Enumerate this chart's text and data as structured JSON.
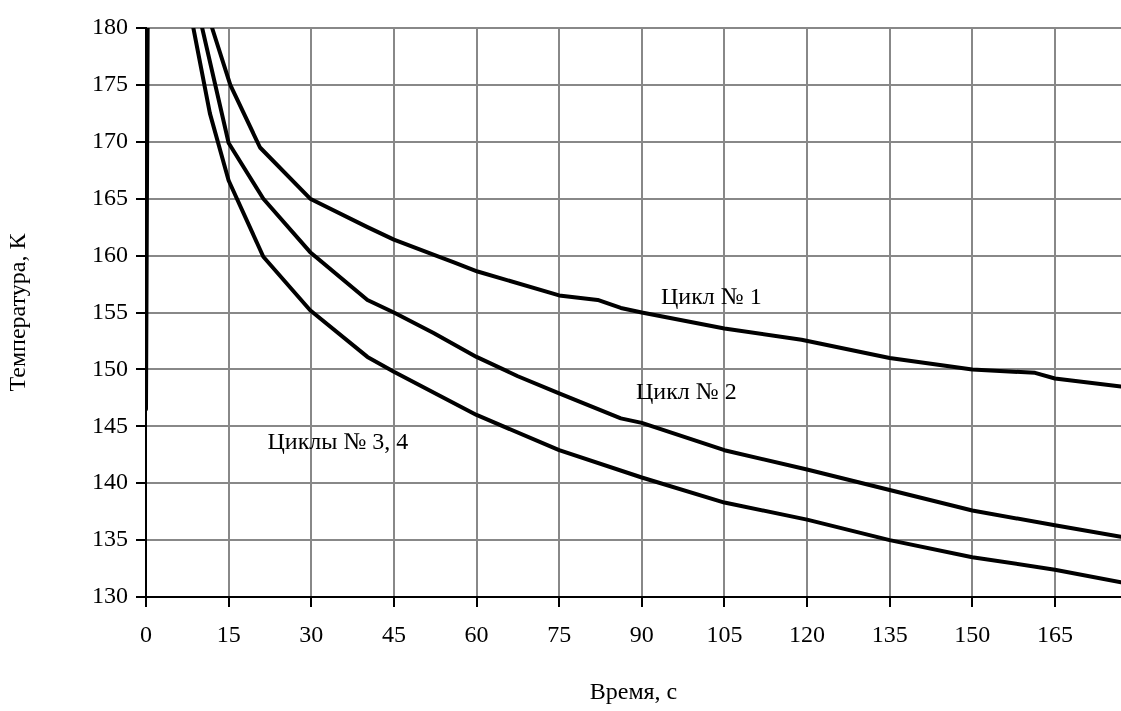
{
  "chart_data": {
    "type": "line",
    "xlabel": "Время, с",
    "ylabel": "Температура, К",
    "xlim": [
      0,
      177
    ],
    "ylim": [
      130,
      180
    ],
    "xticks": [
      0,
      15,
      30,
      45,
      60,
      75,
      90,
      105,
      120,
      135,
      150,
      165
    ],
    "yticks": [
      130,
      135,
      140,
      145,
      150,
      155,
      160,
      165,
      170,
      175,
      180
    ],
    "grid": true,
    "legend": false,
    "marker": "none",
    "line_style": "solid",
    "series": [
      {
        "color": "#000000",
        "x": [
          0,
          0.3
        ],
        "values": [
          146.5,
          180
        ]
      },
      {
        "name": "Цикл № 1",
        "color": "#000000",
        "x": [
          12,
          15.3,
          20.7,
          29.8,
          40.2,
          45,
          55.9,
          60.2,
          75,
          82,
          86.2,
          90,
          105,
          119,
          135,
          150,
          161.4,
          165,
          177
        ],
        "values": [
          180,
          175,
          169.5,
          165,
          162.5,
          161.4,
          159.4,
          158.6,
          156.5,
          156.1,
          155.4,
          155,
          153.6,
          152.6,
          151,
          150,
          149.7,
          149.2,
          148.5
        ]
      },
      {
        "name": "Цикл № 2",
        "color": "#000000",
        "x": [
          10.2,
          15,
          21.3,
          29.8,
          40.2,
          45,
          52.2,
          60,
          67.5,
          75,
          86.2,
          90,
          105,
          120,
          135,
          150,
          165,
          177
        ],
        "values": [
          180,
          169.9,
          165,
          160.3,
          156.1,
          155,
          153.2,
          151.1,
          149.4,
          147.9,
          145.7,
          145.3,
          142.9,
          141.2,
          139.4,
          137.6,
          136.3,
          135.3
        ]
      },
      {
        "name": "Циклы № 3, 4",
        "color": "#000000",
        "x": [
          8.6,
          11.6,
          15,
          21.3,
          29.8,
          40.2,
          45,
          60,
          75,
          90,
          105,
          120,
          135,
          150,
          165,
          177
        ],
        "values": [
          180,
          172.5,
          166.6,
          159.9,
          155.2,
          151.1,
          149.8,
          146,
          142.9,
          140.5,
          138.3,
          136.8,
          135,
          133.5,
          132.4,
          131.3
        ]
      }
    ]
  }
}
